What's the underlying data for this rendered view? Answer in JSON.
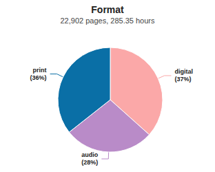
{
  "chart_data": {
    "type": "pie",
    "title": "Format",
    "subtitle": "22,902 pages, 285.35 hours",
    "categories": [
      "digital",
      "audio",
      "print"
    ],
    "values": [
      37,
      28,
      36
    ],
    "value_labels": [
      "(37%)",
      "(28%)",
      "(36%)"
    ],
    "colors": [
      "#fba8a8",
      "#b98bc8",
      "#0a6fa6"
    ],
    "data_labels": true
  }
}
